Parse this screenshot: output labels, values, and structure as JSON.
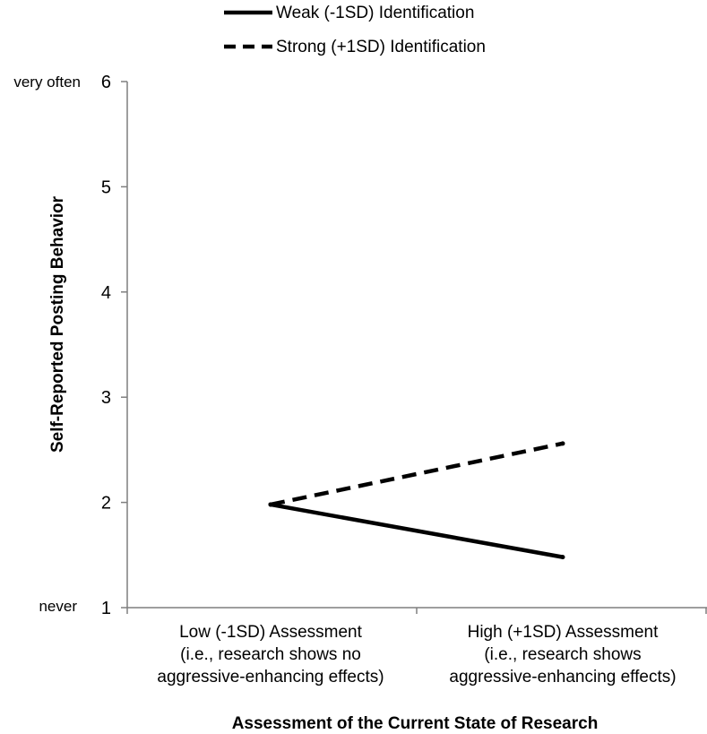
{
  "chart_data": {
    "type": "line",
    "categories": [
      [
        "Low (-1SD) Assessment",
        "(i.e., research shows no",
        "aggressive-enhancing effects)"
      ],
      [
        "High (+1SD) Assessment",
        "(i.e., research shows",
        "aggressive-enhancing effects)"
      ]
    ],
    "series": [
      {
        "name": "Weak (-1SD) Identification",
        "style": "solid",
        "color": "#000000",
        "values": [
          1.98,
          1.48
        ]
      },
      {
        "name": "Strong (+1SD) Identification",
        "style": "dashed",
        "color": "#000000",
        "values": [
          1.98,
          2.56
        ]
      }
    ],
    "ylabel": "Self-Reported Posting Behavior",
    "xlabel": "Assessment of the Current State of Research",
    "ylim": [
      1,
      6
    ],
    "yticks": [
      1,
      2,
      3,
      4,
      5,
      6
    ],
    "y_anchor_labels": {
      "top": "very often",
      "bottom": "never"
    },
    "legend_position": "top",
    "grid": false
  }
}
